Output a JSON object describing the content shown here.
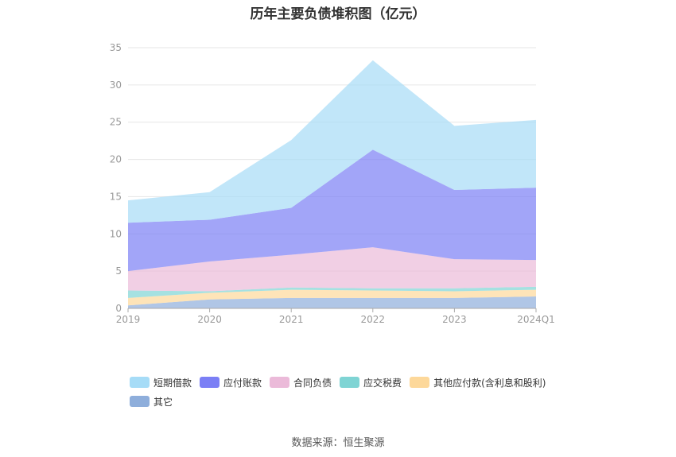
{
  "title": "历年主要负债堆积图（亿元）",
  "source": "数据来源：恒生聚源",
  "chart_data": {
    "type": "area",
    "stacked": true,
    "title": "历年主要负债堆积图（亿元）",
    "xlabel": "",
    "ylabel": "",
    "categories": [
      "2019",
      "2020",
      "2021",
      "2022",
      "2023",
      "2024Q1"
    ],
    "ylim": [
      0,
      35
    ],
    "yticks": [
      0,
      5,
      10,
      15,
      20,
      25,
      30,
      35
    ],
    "grid": true,
    "legend_position": "bottom",
    "series": [
      {
        "name": "其它",
        "color": "#8eaedb",
        "values": [
          0.4,
          1.2,
          1.4,
          1.4,
          1.4,
          1.6
        ]
      },
      {
        "name": "其他应付款(含利息和股利)",
        "color": "#fdd89a",
        "values": [
          1.0,
          0.9,
          1.1,
          1.0,
          0.9,
          0.9
        ]
      },
      {
        "name": "应交税费",
        "color": "#7fd4d4",
        "values": [
          1.0,
          0.2,
          0.3,
          0.3,
          0.4,
          0.4
        ]
      },
      {
        "name": "合同负债",
        "color": "#ebbad9",
        "values": [
          2.6,
          4.0,
          4.4,
          5.5,
          3.9,
          3.6
        ]
      },
      {
        "name": "应付账款",
        "color": "#7b7ff5",
        "values": [
          6.5,
          5.6,
          6.3,
          13.1,
          9.3,
          9.7
        ]
      },
      {
        "name": "短期借款",
        "color": "#a6dcf7",
        "values": [
          3.0,
          3.7,
          9.1,
          12.0,
          8.6,
          9.1
        ]
      }
    ],
    "legend_order": [
      "短期借款",
      "应付账款",
      "合同负债",
      "应交税费",
      "其他应付款(含利息和股利)",
      "其它"
    ]
  }
}
